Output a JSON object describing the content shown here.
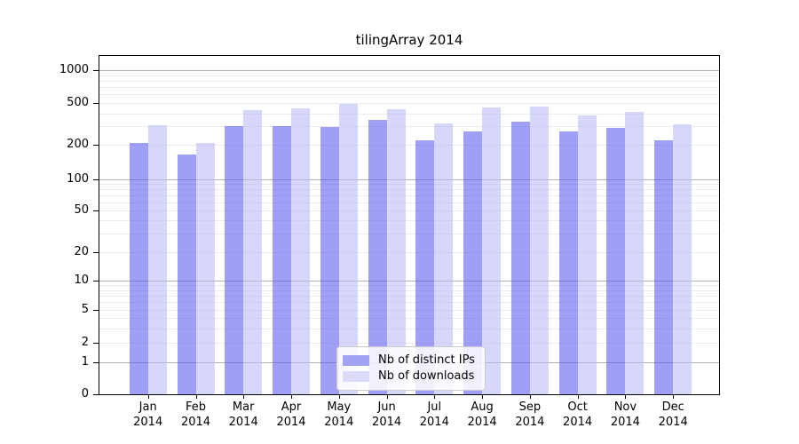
{
  "chart_data": {
    "type": "bar",
    "title": "tilingArray 2014",
    "categories": [
      "Jan",
      "Feb",
      "Mar",
      "Apr",
      "May",
      "Jun",
      "Jul",
      "Aug",
      "Sep",
      "Oct",
      "Nov",
      "Dec"
    ],
    "year": "2014",
    "series": [
      {
        "name": "Nb of distinct IPs",
        "values": [
          210,
          165,
          300,
          300,
          295,
          345,
          220,
          270,
          330,
          270,
          290,
          220
        ],
        "color": "rgba(84,84,238,0.56)",
        "legend_color": "#a2a2f3"
      },
      {
        "name": "Nb of downloads",
        "values": [
          310,
          210,
          430,
          445,
          490,
          440,
          320,
          455,
          465,
          385,
          415,
          315
        ],
        "color": "rgba(186,186,247,0.58)",
        "legend_color": "#dbdbfa"
      }
    ],
    "yticks": [
      1000,
      500,
      200,
      100,
      50,
      20,
      10,
      5,
      2,
      1,
      0
    ],
    "xlabel": "",
    "ylabel": "",
    "scale": "log-with-zero",
    "ylim": [
      0,
      2000
    ],
    "grid": "horizontal",
    "legend_position": "lower-center"
  }
}
